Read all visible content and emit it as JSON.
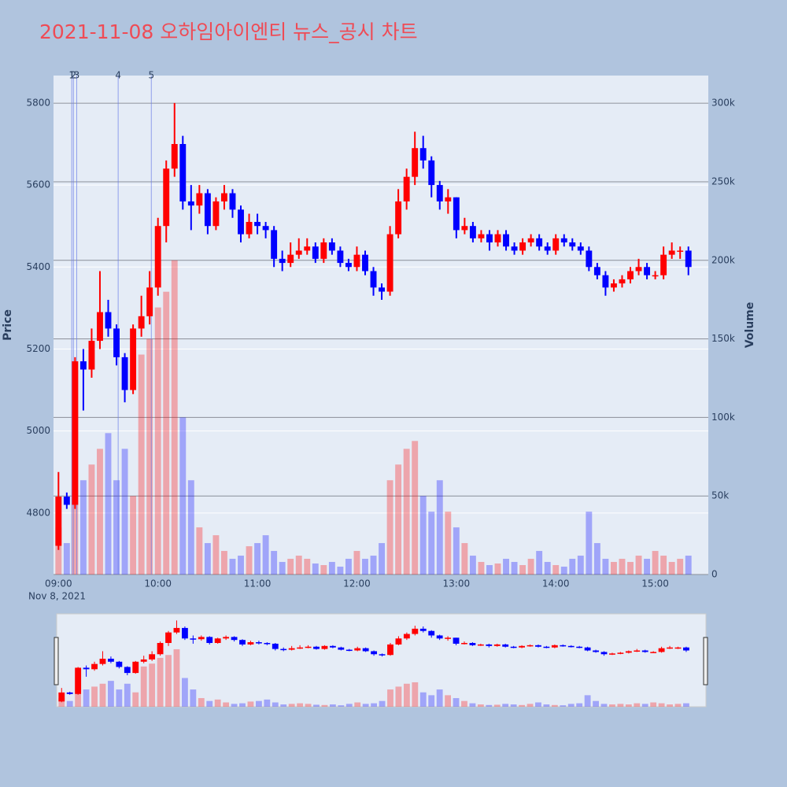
{
  "chart_data": {
    "type": "candlestick",
    "title": "2021-11-08 오하임아이엔티 뉴스_공시 차트",
    "x": [
      "09:00",
      "09:05",
      "09:10",
      "09:15",
      "09:20",
      "09:25",
      "09:30",
      "09:35",
      "09:40",
      "09:45",
      "09:50",
      "09:55",
      "10:00",
      "10:05",
      "10:10",
      "10:15",
      "10:20",
      "10:25",
      "10:30",
      "10:35",
      "10:40",
      "10:45",
      "10:50",
      "10:55",
      "11:00",
      "11:05",
      "11:10",
      "11:15",
      "11:20",
      "11:25",
      "11:30",
      "11:35",
      "11:40",
      "11:45",
      "11:50",
      "11:55",
      "12:00",
      "12:05",
      "12:10",
      "12:15",
      "12:20",
      "12:25",
      "12:30",
      "12:35",
      "12:40",
      "12:45",
      "12:50",
      "12:55",
      "13:00",
      "13:05",
      "13:10",
      "13:15",
      "13:20",
      "13:25",
      "13:30",
      "13:35",
      "13:40",
      "13:45",
      "13:50",
      "13:55",
      "14:00",
      "14:05",
      "14:10",
      "14:15",
      "14:20",
      "14:25",
      "14:30",
      "14:35",
      "14:40",
      "14:45",
      "14:50",
      "14:55",
      "15:00",
      "15:05",
      "15:10",
      "15:15",
      "15:20"
    ],
    "open": [
      4720,
      4840,
      4820,
      5170,
      5150,
      5220,
      5290,
      5250,
      5180,
      5100,
      5250,
      5280,
      5350,
      5500,
      5640,
      5700,
      5560,
      5550,
      5580,
      5500,
      5560,
      5580,
      5540,
      5480,
      5510,
      5500,
      5490,
      5420,
      5410,
      5430,
      5440,
      5450,
      5420,
      5460,
      5440,
      5410,
      5400,
      5430,
      5390,
      5350,
      5340,
      5480,
      5560,
      5620,
      5690,
      5660,
      5600,
      5560,
      5570,
      5490,
      5500,
      5470,
      5480,
      5460,
      5480,
      5450,
      5440,
      5460,
      5470,
      5450,
      5440,
      5470,
      5460,
      5450,
      5440,
      5400,
      5380,
      5350,
      5360,
      5370,
      5390,
      5400,
      5380,
      5380,
      5430,
      5440,
      5440
    ],
    "high": [
      4900,
      4850,
      5180,
      5200,
      5250,
      5390,
      5320,
      5260,
      5190,
      5260,
      5330,
      5390,
      5520,
      5660,
      5800,
      5720,
      5600,
      5600,
      5590,
      5570,
      5600,
      5590,
      5550,
      5530,
      5530,
      5510,
      5500,
      5440,
      5460,
      5470,
      5470,
      5460,
      5470,
      5470,
      5450,
      5420,
      5450,
      5440,
      5400,
      5360,
      5500,
      5590,
      5640,
      5730,
      5720,
      5670,
      5610,
      5590,
      5570,
      5520,
      5510,
      5490,
      5490,
      5490,
      5490,
      5460,
      5470,
      5480,
      5480,
      5460,
      5480,
      5480,
      5470,
      5460,
      5450,
      5410,
      5390,
      5370,
      5380,
      5400,
      5420,
      5410,
      5390,
      5450,
      5460,
      5450,
      5450
    ],
    "low": [
      4710,
      4810,
      4810,
      5050,
      5130,
      5200,
      5230,
      5160,
      5070,
      5090,
      5230,
      5260,
      5330,
      5460,
      5620,
      5540,
      5490,
      5530,
      5480,
      5490,
      5540,
      5520,
      5460,
      5470,
      5480,
      5470,
      5400,
      5390,
      5400,
      5420,
      5430,
      5410,
      5410,
      5430,
      5400,
      5390,
      5390,
      5380,
      5330,
      5320,
      5330,
      5470,
      5540,
      5600,
      5640,
      5570,
      5540,
      5530,
      5470,
      5480,
      5460,
      5460,
      5440,
      5450,
      5440,
      5430,
      5430,
      5450,
      5440,
      5430,
      5430,
      5450,
      5440,
      5430,
      5390,
      5370,
      5330,
      5340,
      5350,
      5360,
      5380,
      5370,
      5370,
      5370,
      5420,
      5420,
      5380
    ],
    "close": [
      4840,
      4820,
      5170,
      5150,
      5220,
      5290,
      5250,
      5180,
      5100,
      5250,
      5280,
      5350,
      5500,
      5640,
      5700,
      5560,
      5550,
      5580,
      5500,
      5560,
      5580,
      5540,
      5480,
      5510,
      5500,
      5490,
      5420,
      5410,
      5430,
      5440,
      5450,
      5420,
      5460,
      5440,
      5410,
      5400,
      5430,
      5390,
      5350,
      5340,
      5480,
      5560,
      5620,
      5690,
      5660,
      5600,
      5560,
      5570,
      5490,
      5500,
      5470,
      5480,
      5460,
      5480,
      5450,
      5440,
      5460,
      5470,
      5450,
      5440,
      5470,
      5460,
      5450,
      5440,
      5400,
      5380,
      5350,
      5360,
      5370,
      5390,
      5400,
      5380,
      5380,
      5430,
      5440,
      5440,
      5400
    ],
    "volume": [
      30000,
      20000,
      130000,
      60000,
      70000,
      80000,
      90000,
      60000,
      80000,
      50000,
      140000,
      150000,
      170000,
      180000,
      200000,
      100000,
      60000,
      30000,
      20000,
      25000,
      15000,
      10000,
      12000,
      18000,
      20000,
      25000,
      15000,
      8000,
      10000,
      12000,
      10000,
      7000,
      6000,
      8000,
      5000,
      10000,
      15000,
      10000,
      12000,
      20000,
      60000,
      70000,
      80000,
      85000,
      50000,
      40000,
      60000,
      40000,
      30000,
      20000,
      12000,
      8000,
      6000,
      7000,
      10000,
      8000,
      6000,
      10000,
      15000,
      8000,
      6000,
      5000,
      10000,
      12000,
      40000,
      20000,
      10000,
      8000,
      10000,
      8000,
      12000,
      10000,
      15000,
      12000,
      8000,
      10000,
      12000
    ],
    "xlim": [
      "08:57",
      "15:32"
    ],
    "xticks": [
      "09:00",
      "10:00",
      "11:00",
      "12:00",
      "13:00",
      "14:00",
      "15:00"
    ],
    "x_sublabel": "Nov 8, 2021",
    "ylim": [
      4650,
      5867
    ],
    "yticks": [
      4800,
      5000,
      5200,
      5400,
      5600,
      5800
    ],
    "y2lim": [
      0,
      317600
    ],
    "y2ticks": [
      0,
      {
        "value": 50000,
        "label": "50k"
      },
      {
        "value": 100000,
        "label": "100k"
      },
      {
        "value": 150000,
        "label": "150k"
      },
      {
        "value": 200000,
        "label": "200k"
      },
      {
        "value": 250000,
        "label": "250k"
      },
      {
        "value": 300000,
        "label": "300k"
      }
    ],
    "ylabel": "Price",
    "y2label": "Volume",
    "increasing_color": "#ff0000",
    "decreasing_color": "#0000ff",
    "annotations": [
      {
        "label": "1",
        "x": "09:08"
      },
      {
        "label": "2",
        "x": "09:09"
      },
      {
        "label": "3",
        "x": "09:11"
      },
      {
        "label": "4",
        "x": "09:36"
      },
      {
        "label": "5",
        "x": "09:56"
      }
    ],
    "grid": true,
    "rangeslider": true
  }
}
